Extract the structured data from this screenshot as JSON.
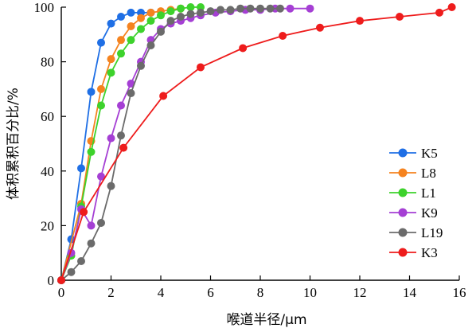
{
  "chart_data": {
    "type": "line",
    "xlabel": "喉道半径/μm",
    "ylabel": "体积累积百分比/%",
    "xlim": [
      0,
      16
    ],
    "ylim": [
      0,
      100
    ],
    "x_ticks": [
      "0",
      "2",
      "4",
      "6",
      "8",
      "10",
      "12",
      "14",
      "16"
    ],
    "y_ticks": [
      "0",
      "20",
      "40",
      "60",
      "80",
      "100"
    ],
    "grid": false,
    "legend_position": "right",
    "series": [
      {
        "name": "K5",
        "color": "#1f6fe5",
        "x": [
          0,
          0.4,
          0.8,
          1.2,
          1.6,
          2.0,
          2.4,
          2.8,
          3.2,
          3.6
        ],
        "y": [
          0,
          15,
          41,
          69,
          87,
          94,
          96.5,
          98,
          98,
          98
        ]
      },
      {
        "name": "L8",
        "color": "#f5831f",
        "x": [
          0,
          0.8,
          1.2,
          1.6,
          2.0,
          2.4,
          2.8,
          3.2,
          3.6,
          4.0,
          4.4,
          4.8
        ],
        "y": [
          0,
          28,
          51,
          70,
          81,
          88,
          93,
          96,
          98,
          98.5,
          99,
          99.5
        ]
      },
      {
        "name": "L1",
        "color": "#3dd22c",
        "x": [
          0,
          0.4,
          0.8,
          1.2,
          1.6,
          2.0,
          2.4,
          2.8,
          3.2,
          3.6,
          4.0,
          4.4,
          4.8,
          5.2,
          5.6
        ],
        "y": [
          0,
          9,
          27,
          47,
          64,
          76,
          83,
          88,
          92,
          95,
          97,
          98.5,
          99.5,
          100,
          100
        ]
      },
      {
        "name": "K9",
        "color": "#a53fd4",
        "x": [
          0,
          0.4,
          0.8,
          1.2,
          1.6,
          2.0,
          2.4,
          2.8,
          3.2,
          3.6,
          4.0,
          4.4,
          4.8,
          5.2,
          5.6,
          6.2,
          6.8,
          7.4,
          8.0,
          8.6,
          9.2,
          10.0
        ],
        "y": [
          0,
          10,
          26,
          20,
          38,
          52,
          64,
          72,
          80,
          88,
          92,
          94,
          95,
          96,
          97,
          98,
          98.5,
          99,
          99,
          99.5,
          99.5,
          99.5
        ]
      },
      {
        "name": "L19",
        "color": "#6b6b6b",
        "x": [
          0,
          0.4,
          0.8,
          1.2,
          1.6,
          2.0,
          2.4,
          2.8,
          3.2,
          3.6,
          4.0,
          4.4,
          4.8,
          5.2,
          5.6,
          6.0,
          6.4,
          6.8,
          7.2,
          7.6,
          8.0,
          8.4,
          8.8
        ],
        "y": [
          0,
          3,
          7,
          13.5,
          21,
          34.5,
          53,
          68.5,
          78.5,
          86,
          91,
          95,
          96.5,
          97.5,
          98,
          98.5,
          99,
          99,
          99.5,
          99.5,
          99.5,
          99.5,
          99.5
        ]
      },
      {
        "name": "K3",
        "color": "#ee1c1c",
        "x": [
          0,
          0.9,
          2.5,
          4.1,
          5.6,
          7.3,
          8.9,
          10.4,
          12.0,
          13.6,
          15.2,
          15.7
        ],
        "y": [
          0,
          25,
          48.5,
          67.5,
          78,
          85,
          89.5,
          92.5,
          95,
          96.5,
          98,
          100
        ]
      }
    ]
  }
}
